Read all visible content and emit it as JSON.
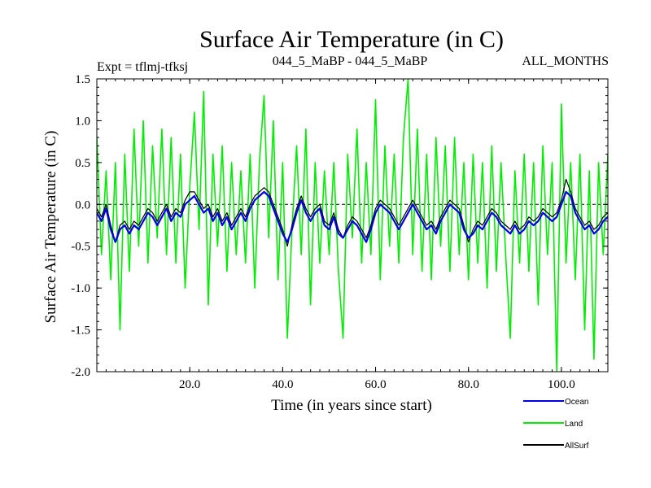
{
  "chart_data": {
    "type": "line",
    "title": "Surface Air Temperature (in C)",
    "subtitle_left": "Expt = tflmj-tfksj",
    "subtitle_center": "044_5_MaBP - 044_5_MaBP",
    "subtitle_right": "ALL_MONTHS",
    "xlabel": "Time (in years since start)",
    "ylabel": "Surface Air Temperature (in C)",
    "xlim": [
      0,
      110
    ],
    "ylim": [
      -2.0,
      1.5
    ],
    "x_ticks": [
      20,
      40,
      60,
      80,
      100
    ],
    "x_tick_labels": [
      "20.0",
      "40.0",
      "60.0",
      "80.0",
      "100.0"
    ],
    "y_ticks": [
      1.5,
      1.0,
      0.5,
      0.0,
      -0.5,
      -1.0,
      -1.5,
      -2.0
    ],
    "y_tick_labels": [
      "1.5",
      "1.0",
      "0.5",
      "0.0",
      "-0.5",
      "-1.0",
      "-1.5",
      "-2.0"
    ],
    "zero_line": true,
    "series": [
      {
        "name": "Land",
        "color": "#00ee00",
        "x": [
          0,
          1,
          2,
          3,
          4,
          5,
          6,
          7,
          8,
          9,
          10,
          11,
          12,
          13,
          14,
          15,
          16,
          17,
          18,
          19,
          20,
          21,
          22,
          23,
          24,
          25,
          26,
          27,
          28,
          29,
          30,
          31,
          32,
          33,
          34,
          35,
          36,
          37,
          38,
          39,
          40,
          41,
          42,
          43,
          44,
          45,
          46,
          47,
          48,
          49,
          50,
          51,
          52,
          53,
          54,
          55,
          56,
          57,
          58,
          59,
          60,
          61,
          62,
          63,
          64,
          65,
          66,
          67,
          68,
          69,
          70,
          71,
          72,
          73,
          74,
          75,
          76,
          77,
          78,
          79,
          80,
          81,
          82,
          83,
          84,
          85,
          86,
          87,
          88,
          89,
          90,
          91,
          92,
          93,
          94,
          95,
          96,
          97,
          98,
          99,
          100,
          101,
          102,
          103,
          104,
          105,
          106,
          107,
          108,
          109,
          110
        ],
        "values": [
          0.8,
          -0.6,
          0.4,
          -0.9,
          0.5,
          -1.5,
          0.6,
          -0.8,
          0.9,
          -0.5,
          1.0,
          -0.7,
          0.7,
          -0.4,
          0.9,
          -0.6,
          0.8,
          -0.7,
          0.6,
          -1.0,
          0.2,
          1.1,
          -0.3,
          1.35,
          -1.2,
          0.6,
          -0.5,
          0.7,
          -0.8,
          0.5,
          -0.6,
          0.4,
          -0.7,
          0.6,
          -1.0,
          0.5,
          1.3,
          -0.4,
          1.0,
          -0.9,
          0.5,
          -1.6,
          -0.3,
          0.7,
          -0.6,
          0.9,
          -1.2,
          0.5,
          -0.7,
          0.4,
          -0.6,
          0.5,
          -0.8,
          -1.6,
          0.6,
          -0.4,
          0.9,
          -0.7,
          0.5,
          -0.6,
          1.25,
          -0.9,
          0.7,
          -0.5,
          0.6,
          -0.7,
          0.8,
          1.5,
          -0.6,
          0.9,
          -0.8,
          0.6,
          -0.9,
          0.8,
          -0.5,
          0.7,
          -0.8,
          0.8,
          -0.6,
          0.5,
          -0.9,
          0.6,
          -0.7,
          0.5,
          -1.0,
          0.7,
          -0.8,
          0.5,
          -0.6,
          -1.6,
          0.4,
          -0.7,
          0.6,
          -0.8,
          0.5,
          -1.2,
          0.7,
          -0.6,
          0.5,
          -2.0,
          1.2,
          -0.7,
          0.5,
          -0.9,
          0.6,
          -1.5,
          0.4,
          -1.85,
          0.5,
          -0.6,
          0.6
        ]
      },
      {
        "name": "Ocean",
        "color": "#0000ee",
        "x": [
          0,
          1,
          2,
          3,
          4,
          5,
          6,
          7,
          8,
          9,
          10,
          11,
          12,
          13,
          14,
          15,
          16,
          17,
          18,
          19,
          20,
          21,
          22,
          23,
          24,
          25,
          26,
          27,
          28,
          29,
          30,
          31,
          32,
          33,
          34,
          35,
          36,
          37,
          38,
          39,
          40,
          41,
          42,
          43,
          44,
          45,
          46,
          47,
          48,
          49,
          50,
          51,
          52,
          53,
          54,
          55,
          56,
          57,
          58,
          59,
          60,
          61,
          62,
          63,
          64,
          65,
          66,
          67,
          68,
          69,
          70,
          71,
          72,
          73,
          74,
          75,
          76,
          77,
          78,
          79,
          80,
          81,
          82,
          83,
          84,
          85,
          86,
          87,
          88,
          89,
          90,
          91,
          92,
          93,
          94,
          95,
          96,
          97,
          98,
          99,
          100,
          101,
          102,
          103,
          104,
          105,
          106,
          107,
          108,
          109,
          110
        ],
        "values": [
          -0.1,
          -0.2,
          -0.05,
          -0.3,
          -0.45,
          -0.3,
          -0.25,
          -0.35,
          -0.25,
          -0.3,
          -0.2,
          -0.1,
          -0.15,
          -0.25,
          -0.15,
          -0.05,
          -0.2,
          -0.1,
          -0.15,
          0.0,
          0.05,
          0.1,
          0.0,
          -0.1,
          -0.05,
          -0.2,
          -0.1,
          -0.25,
          -0.15,
          -0.3,
          -0.2,
          -0.1,
          -0.2,
          -0.05,
          0.05,
          0.1,
          0.15,
          0.1,
          -0.05,
          -0.2,
          -0.35,
          -0.45,
          -0.3,
          -0.1,
          0.05,
          -0.1,
          -0.2,
          -0.1,
          -0.05,
          -0.25,
          -0.3,
          -0.15,
          -0.35,
          -0.4,
          -0.3,
          -0.2,
          -0.25,
          -0.35,
          -0.45,
          -0.3,
          -0.1,
          0.0,
          -0.05,
          -0.1,
          -0.2,
          -0.3,
          -0.2,
          -0.1,
          0.0,
          -0.1,
          -0.2,
          -0.3,
          -0.25,
          -0.35,
          -0.2,
          -0.1,
          0.0,
          -0.05,
          -0.1,
          -0.3,
          -0.4,
          -0.35,
          -0.25,
          -0.3,
          -0.2,
          -0.1,
          -0.15,
          -0.25,
          -0.3,
          -0.35,
          -0.25,
          -0.35,
          -0.3,
          -0.2,
          -0.25,
          -0.2,
          -0.1,
          -0.15,
          -0.2,
          -0.15,
          0.0,
          0.15,
          0.1,
          -0.1,
          -0.2,
          -0.3,
          -0.25,
          -0.35,
          -0.3,
          -0.2,
          -0.15
        ]
      },
      {
        "name": "AllSurf",
        "color": "#000000",
        "x": [
          0,
          1,
          2,
          3,
          4,
          5,
          6,
          7,
          8,
          9,
          10,
          11,
          12,
          13,
          14,
          15,
          16,
          17,
          18,
          19,
          20,
          21,
          22,
          23,
          24,
          25,
          26,
          27,
          28,
          29,
          30,
          31,
          32,
          33,
          34,
          35,
          36,
          37,
          38,
          39,
          40,
          41,
          42,
          43,
          44,
          45,
          46,
          47,
          48,
          49,
          50,
          51,
          52,
          53,
          54,
          55,
          56,
          57,
          58,
          59,
          60,
          61,
          62,
          63,
          64,
          65,
          66,
          67,
          68,
          69,
          70,
          71,
          72,
          73,
          74,
          75,
          76,
          77,
          78,
          79,
          80,
          81,
          82,
          83,
          84,
          85,
          86,
          87,
          88,
          89,
          90,
          91,
          92,
          93,
          94,
          95,
          96,
          97,
          98,
          99,
          100,
          101,
          102,
          103,
          104,
          105,
          106,
          107,
          108,
          109,
          110
        ],
        "values": [
          -0.05,
          -0.15,
          0.0,
          -0.25,
          -0.45,
          -0.25,
          -0.2,
          -0.3,
          -0.2,
          -0.25,
          -0.15,
          -0.05,
          -0.1,
          -0.2,
          -0.1,
          0.0,
          -0.15,
          -0.05,
          -0.1,
          0.05,
          0.15,
          0.15,
          0.05,
          -0.05,
          0.0,
          -0.15,
          -0.05,
          -0.2,
          -0.1,
          -0.25,
          -0.15,
          -0.05,
          -0.15,
          0.0,
          0.1,
          0.15,
          0.2,
          0.15,
          0.0,
          -0.15,
          -0.3,
          -0.5,
          -0.25,
          -0.05,
          0.1,
          -0.05,
          -0.15,
          -0.05,
          0.0,
          -0.2,
          -0.25,
          -0.1,
          -0.3,
          -0.4,
          -0.25,
          -0.15,
          -0.2,
          -0.3,
          -0.4,
          -0.25,
          -0.05,
          0.05,
          0.0,
          -0.05,
          -0.15,
          -0.25,
          -0.15,
          -0.05,
          0.05,
          -0.05,
          -0.15,
          -0.25,
          -0.2,
          -0.3,
          -0.15,
          -0.05,
          0.05,
          0.0,
          -0.05,
          -0.25,
          -0.45,
          -0.3,
          -0.2,
          -0.25,
          -0.15,
          -0.05,
          -0.1,
          -0.2,
          -0.25,
          -0.3,
          -0.2,
          -0.3,
          -0.25,
          -0.15,
          -0.2,
          -0.15,
          -0.05,
          -0.1,
          -0.15,
          -0.1,
          0.05,
          0.3,
          0.15,
          -0.05,
          -0.15,
          -0.25,
          -0.2,
          -0.3,
          -0.25,
          -0.15,
          -0.1
        ]
      }
    ],
    "legend": {
      "placement": "bottom-right",
      "items": [
        "Ocean",
        "Land",
        "AllSurf"
      ]
    }
  }
}
